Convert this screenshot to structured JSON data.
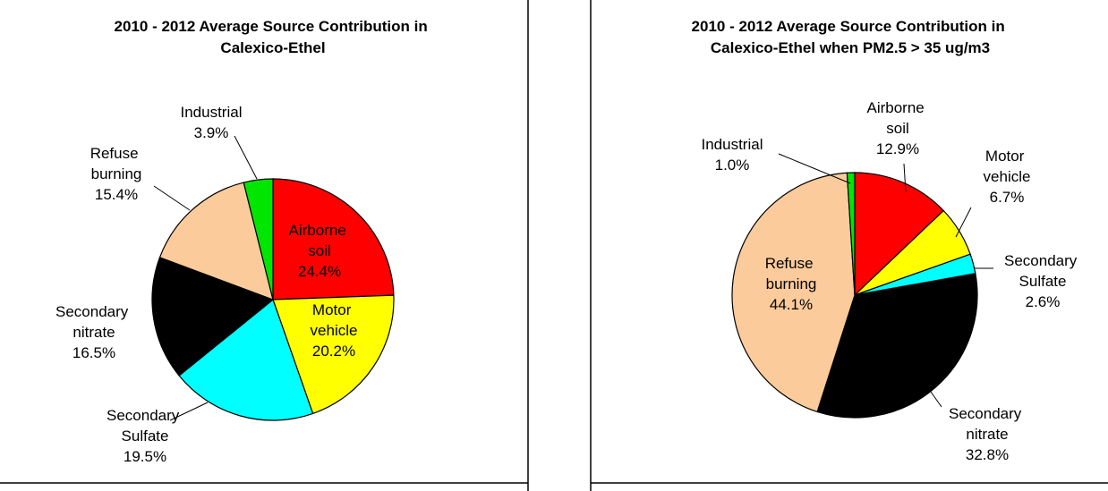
{
  "chart_data": [
    {
      "type": "pie",
      "title": "2010 - 2012 Average Source Contribution in Calexico-Ethel",
      "categories": [
        "Airborne soil",
        "Motor vehicle",
        "Secondary Sulfate",
        "Secondary nitrate",
        "Refuse burning",
        "Industrial"
      ],
      "values": [
        24.4,
        20.2,
        19.5,
        16.5,
        15.4,
        3.9
      ],
      "value_labels": [
        "24.4%",
        "20.2%",
        "19.5%",
        "16.5%",
        "15.4%",
        "3.9%"
      ],
      "colors": [
        "#ff0000",
        "#ffff00",
        "#00ffff",
        "#000000",
        "#fbcb9b",
        "#00e600"
      ]
    },
    {
      "type": "pie",
      "title": "2010 - 2012 Average Source Contribution in Calexico-Ethel when PM2.5 > 35 ug/m3",
      "categories": [
        "Airborne soil",
        "Motor vehicle",
        "Secondary Sulfate",
        "Secondary nitrate",
        "Refuse burning",
        "Industrial"
      ],
      "values": [
        12.9,
        6.7,
        2.6,
        32.8,
        44.1,
        1.0
      ],
      "value_labels": [
        "12.9%",
        "6.7%",
        "2.6%",
        "32.8%",
        "44.1%",
        "1.0%"
      ],
      "colors": [
        "#ff0000",
        "#ffff00",
        "#00ffff",
        "#000000",
        "#fbcb9b",
        "#00e600"
      ]
    }
  ]
}
